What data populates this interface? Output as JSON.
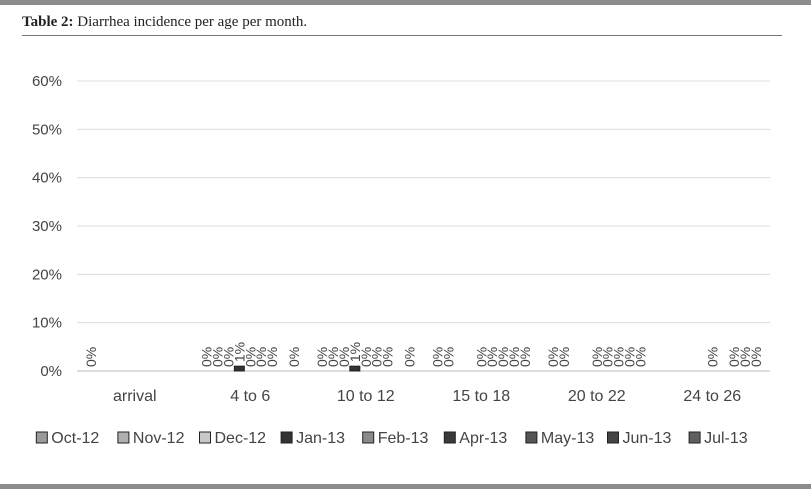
{
  "caption": {
    "label": "Table 2:",
    "text": "Diarrhea incidence per age per month."
  },
  "chart_data": {
    "type": "bar",
    "title": "",
    "xlabel": "",
    "ylabel": "",
    "ylim": [
      0,
      60
    ],
    "y_ticks": [
      "0%",
      "10%",
      "20%",
      "30%",
      "40%",
      "50%",
      "60%"
    ],
    "y_tick_values": [
      0,
      10,
      20,
      30,
      40,
      50,
      60
    ],
    "grid": true,
    "legend": "bottom",
    "categories": [
      "arrival",
      "4 to 6",
      "10 to 12",
      "15 to 18",
      "20 to 22",
      "24 to 26"
    ],
    "series": [
      {
        "name": "Oct-12",
        "color": "#9a9a9a",
        "values": [
          0,
          0,
          0,
          0,
          0,
          null
        ],
        "labels": [
          "0%",
          "0%",
          "0%",
          "0%",
          "0%",
          ""
        ]
      },
      {
        "name": "Nov-12",
        "color": "#b0b0b0",
        "values": [
          null,
          0,
          0,
          0,
          0,
          null
        ],
        "labels": [
          "",
          "0%",
          "0%",
          "0%",
          "0%",
          ""
        ]
      },
      {
        "name": "Dec-12",
        "color": "#c8c8c8",
        "values": [
          null,
          0,
          0,
          null,
          null,
          null
        ],
        "labels": [
          "",
          "0%",
          "0%",
          "",
          "",
          ""
        ]
      },
      {
        "name": "Jan-13",
        "color": "#333333",
        "values": [
          null,
          1,
          1,
          null,
          null,
          null
        ],
        "labels": [
          "",
          "1%",
          "1%",
          "",
          "",
          ""
        ]
      },
      {
        "name": "Feb-13",
        "color": "#8a8a8a",
        "values": [
          null,
          0,
          0,
          0,
          0,
          0
        ],
        "labels": [
          "",
          "0%",
          "0%",
          "0%",
          "0%",
          "0%"
        ]
      },
      {
        "name": "Apr-13",
        "color": "#3a3a3a",
        "values": [
          null,
          0,
          0,
          0,
          0,
          null
        ],
        "labels": [
          "",
          "0%",
          "0%",
          "0%",
          "0%",
          ""
        ]
      },
      {
        "name": "May-13",
        "color": "#555555",
        "values": [
          null,
          0,
          0,
          0,
          0,
          0
        ],
        "labels": [
          "",
          "0%",
          "0%",
          "0%",
          "0%",
          "0%"
        ]
      },
      {
        "name": "Jun-13",
        "color": "#444444",
        "values": [
          null,
          null,
          null,
          0,
          0,
          0
        ],
        "labels": [
          "",
          "",
          "",
          "0%",
          "0%",
          "0%"
        ]
      },
      {
        "name": "Jul-13",
        "color": "#606060",
        "values": [
          null,
          0,
          0,
          0,
          0,
          0
        ],
        "labels": [
          "",
          "0%",
          "0%",
          "0%",
          "0%",
          "0%"
        ]
      }
    ]
  }
}
